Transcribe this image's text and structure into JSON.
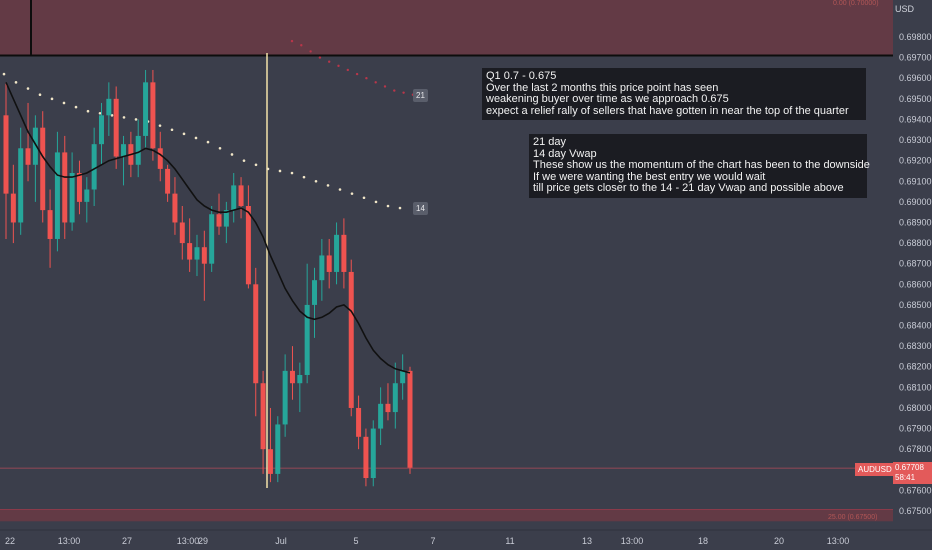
{
  "currency": "USD",
  "symbol": "AUDUSD",
  "last_price": "0.67708",
  "countdown": "58:41",
  "top_zone_label": "0.00 (0.70000)",
  "bottom_zone_label": "25.00 (0.67500)",
  "ma_badges": {
    "ma21": "21",
    "ma14": "14"
  },
  "notes": {
    "note1": [
      "Q1 0.7 - 0.675",
      "Over the last 2 months this price point has seen",
      "weakening buyer over time as we approach 0.675",
      "expect a relief rally of sellers that have gotten in near the top of the quarter"
    ],
    "note2": [
      "21 day",
      "14 day Vwap",
      "These show us the momentum of the chart has been to the downside",
      "If we were wanting the best entry we would wait",
      "till price gets closer to the 14 - 21 day Vwap and possible above"
    ]
  },
  "colors": {
    "up": "#26a69a",
    "down": "#ef5350",
    "zone": "#6b3a44",
    "vline": "#f3e2a9",
    "ma": "#111111"
  },
  "chart_data": {
    "type": "candlestick",
    "y_ticks": [
      "0.69800",
      "0.69700",
      "0.69600",
      "0.69500",
      "0.69400",
      "0.69300",
      "0.69200",
      "0.69100",
      "0.69000",
      "0.68900",
      "0.68800",
      "0.68700",
      "0.68600",
      "0.68500",
      "0.68400",
      "0.68300",
      "0.68200",
      "0.68100",
      "0.68000",
      "0.67900",
      "0.67800",
      "0.67700",
      "0.67600",
      "0.67500"
    ],
    "x_ticks": [
      "22",
      "13:00",
      "27",
      "13:00",
      "29",
      "Jul",
      "5",
      "7",
      "11",
      "13",
      "13:00",
      "18",
      "20",
      "13:00"
    ],
    "ylim": [
      0.6745,
      0.7005
    ],
    "zones": [
      {
        "from": 0.6971,
        "to": 0.7005
      },
      {
        "from": 0.6745,
        "to": 0.67507
      }
    ],
    "last_price": 0.67708,
    "candles": [
      {
        "o": 0.6942,
        "h": 0.6958,
        "l": 0.6882,
        "c": 0.6904
      },
      {
        "o": 0.6904,
        "h": 0.6918,
        "l": 0.688,
        "c": 0.689
      },
      {
        "o": 0.689,
        "h": 0.6936,
        "l": 0.6884,
        "c": 0.6926
      },
      {
        "o": 0.6926,
        "h": 0.6948,
        "l": 0.691,
        "c": 0.6918
      },
      {
        "o": 0.6918,
        "h": 0.6942,
        "l": 0.69,
        "c": 0.6936
      },
      {
        "o": 0.6936,
        "h": 0.6944,
        "l": 0.689,
        "c": 0.6896
      },
      {
        "o": 0.6896,
        "h": 0.6906,
        "l": 0.6868,
        "c": 0.6882
      },
      {
        "o": 0.6882,
        "h": 0.6934,
        "l": 0.6876,
        "c": 0.6924
      },
      {
        "o": 0.6924,
        "h": 0.6932,
        "l": 0.6882,
        "c": 0.689
      },
      {
        "o": 0.689,
        "h": 0.6924,
        "l": 0.6886,
        "c": 0.6914
      },
      {
        "o": 0.6914,
        "h": 0.692,
        "l": 0.6894,
        "c": 0.69
      },
      {
        "o": 0.69,
        "h": 0.6912,
        "l": 0.689,
        "c": 0.6906
      },
      {
        "o": 0.6906,
        "h": 0.6936,
        "l": 0.6898,
        "c": 0.6928
      },
      {
        "o": 0.6928,
        "h": 0.6948,
        "l": 0.6918,
        "c": 0.6942
      },
      {
        "o": 0.6942,
        "h": 0.6958,
        "l": 0.6932,
        "c": 0.695
      },
      {
        "o": 0.695,
        "h": 0.6956,
        "l": 0.6916,
        "c": 0.6922
      },
      {
        "o": 0.6922,
        "h": 0.6932,
        "l": 0.6908,
        "c": 0.6928
      },
      {
        "o": 0.6928,
        "h": 0.6934,
        "l": 0.6912,
        "c": 0.6918
      },
      {
        "o": 0.6918,
        "h": 0.694,
        "l": 0.6912,
        "c": 0.6932
      },
      {
        "o": 0.6932,
        "h": 0.6964,
        "l": 0.6926,
        "c": 0.6958
      },
      {
        "o": 0.6958,
        "h": 0.6964,
        "l": 0.692,
        "c": 0.6926
      },
      {
        "o": 0.6926,
        "h": 0.6934,
        "l": 0.691,
        "c": 0.6916
      },
      {
        "o": 0.6916,
        "h": 0.6918,
        "l": 0.69,
        "c": 0.6904
      },
      {
        "o": 0.6904,
        "h": 0.6912,
        "l": 0.6884,
        "c": 0.689
      },
      {
        "o": 0.689,
        "h": 0.6898,
        "l": 0.6872,
        "c": 0.688
      },
      {
        "o": 0.688,
        "h": 0.6892,
        "l": 0.6866,
        "c": 0.6872
      },
      {
        "o": 0.6872,
        "h": 0.6884,
        "l": 0.6864,
        "c": 0.6878
      },
      {
        "o": 0.6878,
        "h": 0.6886,
        "l": 0.6852,
        "c": 0.687
      },
      {
        "o": 0.687,
        "h": 0.6898,
        "l": 0.6866,
        "c": 0.6894
      },
      {
        "o": 0.6894,
        "h": 0.6904,
        "l": 0.6884,
        "c": 0.6888
      },
      {
        "o": 0.6888,
        "h": 0.69,
        "l": 0.688,
        "c": 0.6896
      },
      {
        "o": 0.6896,
        "h": 0.6914,
        "l": 0.689,
        "c": 0.6908
      },
      {
        "o": 0.6908,
        "h": 0.6912,
        "l": 0.6892,
        "c": 0.6898
      },
      {
        "o": 0.6898,
        "h": 0.6908,
        "l": 0.6858,
        "c": 0.686
      },
      {
        "o": 0.686,
        "h": 0.6868,
        "l": 0.6796,
        "c": 0.6812
      },
      {
        "o": 0.6812,
        "h": 0.6818,
        "l": 0.6768,
        "c": 0.678
      },
      {
        "o": 0.678,
        "h": 0.68,
        "l": 0.6764,
        "c": 0.6768
      },
      {
        "o": 0.6768,
        "h": 0.6796,
        "l": 0.6764,
        "c": 0.6792
      },
      {
        "o": 0.6792,
        "h": 0.6826,
        "l": 0.6786,
        "c": 0.6818
      },
      {
        "o": 0.6818,
        "h": 0.683,
        "l": 0.6804,
        "c": 0.6812
      },
      {
        "o": 0.6812,
        "h": 0.6822,
        "l": 0.6798,
        "c": 0.6816
      },
      {
        "o": 0.6816,
        "h": 0.687,
        "l": 0.6812,
        "c": 0.685
      },
      {
        "o": 0.685,
        "h": 0.6868,
        "l": 0.6834,
        "c": 0.6862
      },
      {
        "o": 0.6862,
        "h": 0.6882,
        "l": 0.6852,
        "c": 0.6874
      },
      {
        "o": 0.6874,
        "h": 0.6882,
        "l": 0.6858,
        "c": 0.6866
      },
      {
        "o": 0.6866,
        "h": 0.689,
        "l": 0.686,
        "c": 0.6884
      },
      {
        "o": 0.6884,
        "h": 0.6892,
        "l": 0.6858,
        "c": 0.6866
      },
      {
        "o": 0.6866,
        "h": 0.6872,
        "l": 0.6796,
        "c": 0.68
      },
      {
        "o": 0.68,
        "h": 0.6806,
        "l": 0.678,
        "c": 0.6786
      },
      {
        "o": 0.6786,
        "h": 0.679,
        "l": 0.6762,
        "c": 0.6766
      },
      {
        "o": 0.6766,
        "h": 0.6794,
        "l": 0.6762,
        "c": 0.679
      },
      {
        "o": 0.679,
        "h": 0.681,
        "l": 0.6782,
        "c": 0.6802
      },
      {
        "o": 0.6802,
        "h": 0.6812,
        "l": 0.6794,
        "c": 0.6798
      },
      {
        "o": 0.6798,
        "h": 0.6822,
        "l": 0.679,
        "c": 0.6812
      },
      {
        "o": 0.6812,
        "h": 0.6826,
        "l": 0.6804,
        "c": 0.6818
      },
      {
        "o": 0.6818,
        "h": 0.682,
        "l": 0.6768,
        "c": 0.6771
      }
    ],
    "ma_dark": [
      0.6958,
      0.695,
      0.6942,
      0.6934,
      0.6928,
      0.6922,
      0.6917,
      0.6913,
      0.6912,
      0.6912,
      0.6913,
      0.6914,
      0.6916,
      0.6918,
      0.692,
      0.6921,
      0.6922,
      0.6923,
      0.6924,
      0.6926,
      0.6925,
      0.6923,
      0.692,
      0.6916,
      0.6911,
      0.6906,
      0.6901,
      0.6898,
      0.6896,
      0.6895,
      0.6895,
      0.6896,
      0.6897,
      0.6895,
      0.689,
      0.6883,
      0.6874,
      0.6866,
      0.6858,
      0.6852,
      0.6847,
      0.6844,
      0.6843,
      0.6844,
      0.6846,
      0.6849,
      0.685,
      0.6847,
      0.6841,
      0.6834,
      0.6828,
      0.6824,
      0.6821,
      0.6819,
      0.6818,
      0.6817
    ],
    "ma21_points": [
      0.6978,
      0.6976,
      0.6973,
      0.697,
      0.6968,
      0.6966,
      0.6964,
      0.6962,
      0.696,
      0.6958,
      0.6956,
      0.6954,
      0.6953,
      0.6952
    ],
    "ma21_label_at": 0.6953,
    "ma14_points": [
      0.6962,
      0.6958,
      0.6955,
      0.6952,
      0.695,
      0.6948,
      0.6946,
      0.6944,
      0.6943,
      0.6942,
      0.6941,
      0.694,
      0.6939,
      0.6937,
      0.6935,
      0.6933,
      0.6931,
      0.6929,
      0.6926,
      0.6923,
      0.692,
      0.6918,
      0.6916,
      0.6915,
      0.6914,
      0.6912,
      0.691,
      0.6908,
      0.6906,
      0.6904,
      0.6902,
      0.69,
      0.6898,
      0.6897
    ],
    "ma14_label_at": 0.6897
  }
}
